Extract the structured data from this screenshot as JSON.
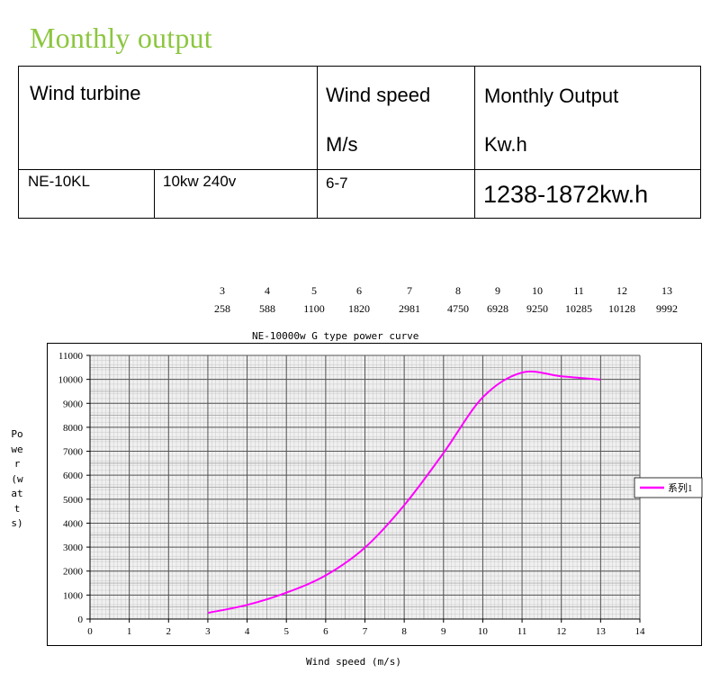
{
  "page_title": "Monthly output",
  "table": {
    "header": {
      "turbine": "Wind turbine",
      "speed_label": "Wind speed",
      "speed_unit": "M/s",
      "output_label": "Monthly Output",
      "output_unit": "Kw.h"
    },
    "row": {
      "model": "NE-10KL",
      "rating": "10kw 240v",
      "speed": "6-7",
      "output": "1238-1872kw.h"
    }
  },
  "data_table": {
    "speeds": [
      "3",
      "4",
      "5",
      "6",
      "7",
      "8",
      "9",
      "10",
      "11",
      "12",
      "13"
    ],
    "powers": [
      "258",
      "588",
      "1100",
      "1820",
      "2981",
      "4750",
      "6928",
      "9250",
      "10285",
      "10128",
      "9992"
    ]
  },
  "chart_data": {
    "type": "line",
    "title": "NE-10000w G type power curve",
    "xlabel": "Wind speed (m/s)",
    "ylabel": "Power(watts)",
    "xlim": [
      0,
      14
    ],
    "ylim": [
      0,
      11000
    ],
    "x_ticks": [
      0,
      1,
      2,
      3,
      4,
      5,
      6,
      7,
      8,
      9,
      10,
      11,
      12,
      13,
      14
    ],
    "y_ticks": [
      0,
      1000,
      2000,
      3000,
      4000,
      5000,
      6000,
      7000,
      8000,
      9000,
      10000,
      11000
    ],
    "grid": true,
    "legend_position": "right",
    "series": [
      {
        "name": "系列1",
        "color": "#ff00ff",
        "x": [
          3,
          4,
          5,
          6,
          7,
          8,
          9,
          10,
          11,
          12,
          13
        ],
        "y": [
          258,
          588,
          1100,
          1820,
          2981,
          4750,
          6928,
          9250,
          10285,
          10128,
          9992
        ]
      }
    ]
  }
}
